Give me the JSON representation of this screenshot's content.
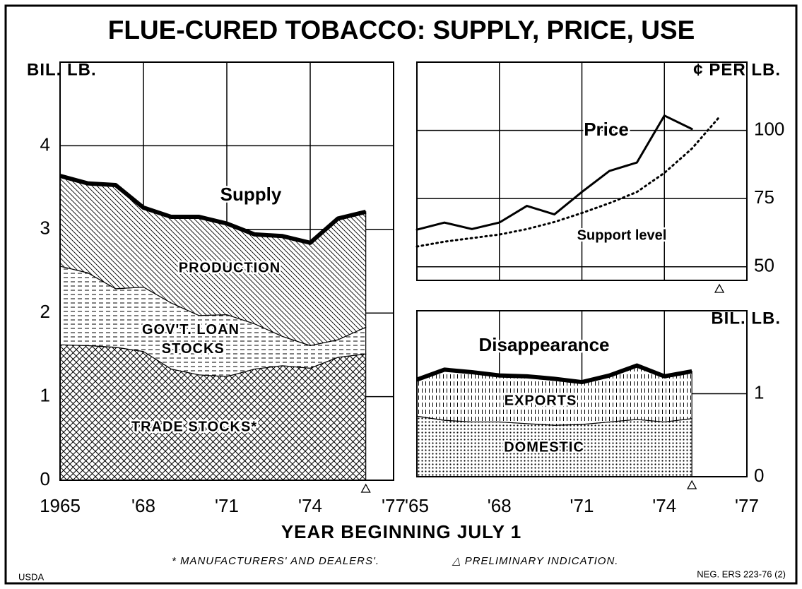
{
  "title": "FLUE-CURED TOBACCO:  SUPPLY, PRICE, USE",
  "x_label": "YEAR BEGINNING JULY 1",
  "footnotes": [
    "* MANUFACTURERS' AND DEALERS'.",
    "△ PRELIMINARY INDICATION."
  ],
  "source": "USDA",
  "reference": "NEG. ERS 223-76 (2)",
  "chart_data": [
    {
      "type": "stacked_area",
      "ylabel": "BIL. LB.",
      "total_name": "Supply",
      "x": [
        1965,
        1966,
        1967,
        1968,
        1969,
        1970,
        1971,
        1972,
        1973,
        1974,
        1975,
        1976
      ],
      "series": [
        {
          "name": "TRADE STOCKS*",
          "pattern": "crosshatch",
          "values": [
            1.62,
            1.61,
            1.59,
            1.54,
            1.33,
            1.26,
            1.24,
            1.33,
            1.37,
            1.34,
            1.47,
            1.51
          ]
        },
        {
          "name": "GOV'T. LOAN STOCKS",
          "pattern": "dashes",
          "values": [
            0.94,
            0.87,
            0.7,
            0.77,
            0.79,
            0.71,
            0.74,
            0.54,
            0.35,
            0.27,
            0.21,
            0.32
          ]
        },
        {
          "name": "PRODUCTION",
          "pattern": "diagonal",
          "values": [
            1.08,
            1.07,
            1.24,
            0.95,
            1.03,
            1.18,
            1.09,
            1.07,
            1.2,
            1.23,
            1.45,
            1.38
          ]
        }
      ],
      "xlim": [
        1965,
        1977
      ],
      "xticks": [
        1965,
        {
          "value": 1968,
          "label": "'68"
        },
        {
          "value": 1971,
          "label": "'71"
        },
        {
          "value": 1974,
          "label": "'74"
        },
        {
          "value": 1977,
          "label": "'77"
        }
      ],
      "ylim": [
        0,
        5
      ],
      "yticks": [
        0,
        1,
        2,
        3,
        4
      ],
      "grid": true,
      "preliminary_x": 1976
    },
    {
      "type": "line",
      "ylabel": "¢ PER LB.",
      "x": [
        1965,
        1966,
        1967,
        1968,
        1969,
        1970,
        1971,
        1972,
        1973,
        1974,
        1975,
        1976
      ],
      "series": [
        {
          "name": "Price",
          "style": "solid",
          "values": [
            63.6,
            66.2,
            63.8,
            66.2,
            72.3,
            69.2,
            77.4,
            85.1,
            88.2,
            105.4,
            100.5,
            null
          ]
        },
        {
          "name": "Support level",
          "style": "dotted",
          "values": [
            57.4,
            59.2,
            60.5,
            61.8,
            63.8,
            66.4,
            69.7,
            73.3,
            77.4,
            84.4,
            93.3,
            104.9
          ]
        }
      ],
      "xlim": [
        1965,
        1977
      ],
      "xticks": [
        1965,
        1968,
        1971,
        1974,
        1977
      ],
      "show_xtick_labels": false,
      "ylim": [
        45,
        125
      ],
      "yticks": [
        50,
        75,
        100
      ],
      "grid": true,
      "preliminary_x": 1976
    },
    {
      "type": "stacked_area",
      "ylabel": "BIL. LB.",
      "total_name": "Disappearance",
      "x": [
        1965,
        1966,
        1967,
        1968,
        1969,
        1970,
        1971,
        1972,
        1973,
        1974,
        1975
      ],
      "series": [
        {
          "name": "DOMESTIC",
          "pattern": "dots",
          "values": [
            0.73,
            0.68,
            0.66,
            0.66,
            0.64,
            0.62,
            0.63,
            0.66,
            0.69,
            0.66,
            0.7
          ]
        },
        {
          "name": "EXPORTS",
          "pattern": "vdashes",
          "values": [
            0.44,
            0.61,
            0.6,
            0.56,
            0.57,
            0.56,
            0.51,
            0.56,
            0.65,
            0.55,
            0.57
          ]
        }
      ],
      "xlim": [
        1965,
        1977
      ],
      "xticks": [
        {
          "value": 1965,
          "label": "'65"
        },
        {
          "value": 1968,
          "label": "'68"
        },
        {
          "value": 1971,
          "label": "'71"
        },
        {
          "value": 1974,
          "label": "'74"
        },
        {
          "value": 1977,
          "label": "'77"
        }
      ],
      "ylim": [
        0,
        2
      ],
      "yticks": [
        0,
        1
      ],
      "grid": true,
      "preliminary_x": 1975
    }
  ]
}
